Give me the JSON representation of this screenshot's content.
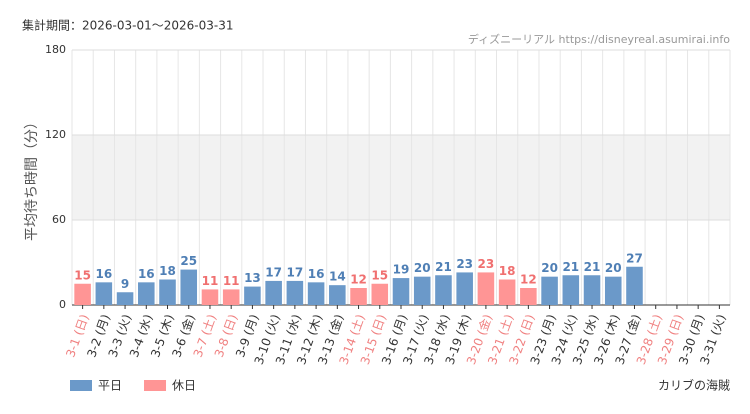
{
  "chart_data": {
    "type": "bar",
    "title": "集計期間：2026-03-01～2026-03-31",
    "source": "ディズニーリアル https://disneyreal.asumirai.info",
    "ylabel": "平均待ち時間（分）",
    "attraction": "カリブの海賊",
    "categories": [
      "3-1 (日)",
      "3-2 (月)",
      "3-3 (火)",
      "3-4 (水)",
      "3-5 (木)",
      "3-6 (金)",
      "3-7 (土)",
      "3-8 (日)",
      "3-9 (月)",
      "3-10 (火)",
      "3-11 (水)",
      "3-12 (木)",
      "3-13 (金)",
      "3-14 (土)",
      "3-15 (日)",
      "3-16 (月)",
      "3-17 (火)",
      "3-18 (水)",
      "3-19 (木)",
      "3-20 (金)",
      "3-21 (土)",
      "3-22 (日)",
      "3-23 (月)",
      "3-24 (火)",
      "3-25 (水)",
      "3-26 (木)",
      "3-27 (金)",
      "3-28 (土)",
      "3-29 (日)",
      "3-30 (月)",
      "3-31 (火)"
    ],
    "category_colors": [
      "#f08080",
      "#333333",
      "#333333",
      "#333333",
      "#333333",
      "#333333",
      "#f08080",
      "#f08080",
      "#333333",
      "#333333",
      "#333333",
      "#333333",
      "#333333",
      "#f08080",
      "#f08080",
      "#333333",
      "#333333",
      "#333333",
      "#333333",
      "#f08080",
      "#f08080",
      "#f08080",
      "#333333",
      "#333333",
      "#333333",
      "#333333",
      "#333333",
      "#f08080",
      "#f08080",
      "#333333",
      "#333333"
    ],
    "series": [
      {
        "name": "平日",
        "color": "#6b99c9",
        "label_color": "#4f7fb5",
        "values": [
          null,
          16,
          9,
          16,
          18,
          25,
          null,
          null,
          13,
          17,
          17,
          16,
          14,
          null,
          null,
          19,
          20,
          21,
          23,
          null,
          null,
          null,
          20,
          21,
          21,
          20,
          27,
          null,
          null,
          null,
          null
        ]
      },
      {
        "name": "休日",
        "color": "#ff9595",
        "label_color": "#f07070",
        "values": [
          15,
          null,
          null,
          null,
          null,
          null,
          11,
          11,
          null,
          null,
          null,
          null,
          null,
          12,
          15,
          null,
          null,
          null,
          null,
          23,
          18,
          12,
          null,
          null,
          null,
          null,
          null,
          null,
          null,
          null,
          null
        ]
      }
    ],
    "ylim": [
      0,
      180
    ],
    "yticks": [
      0,
      60,
      120,
      180
    ],
    "grid": true,
    "band_fill": "#f2f2f2"
  }
}
